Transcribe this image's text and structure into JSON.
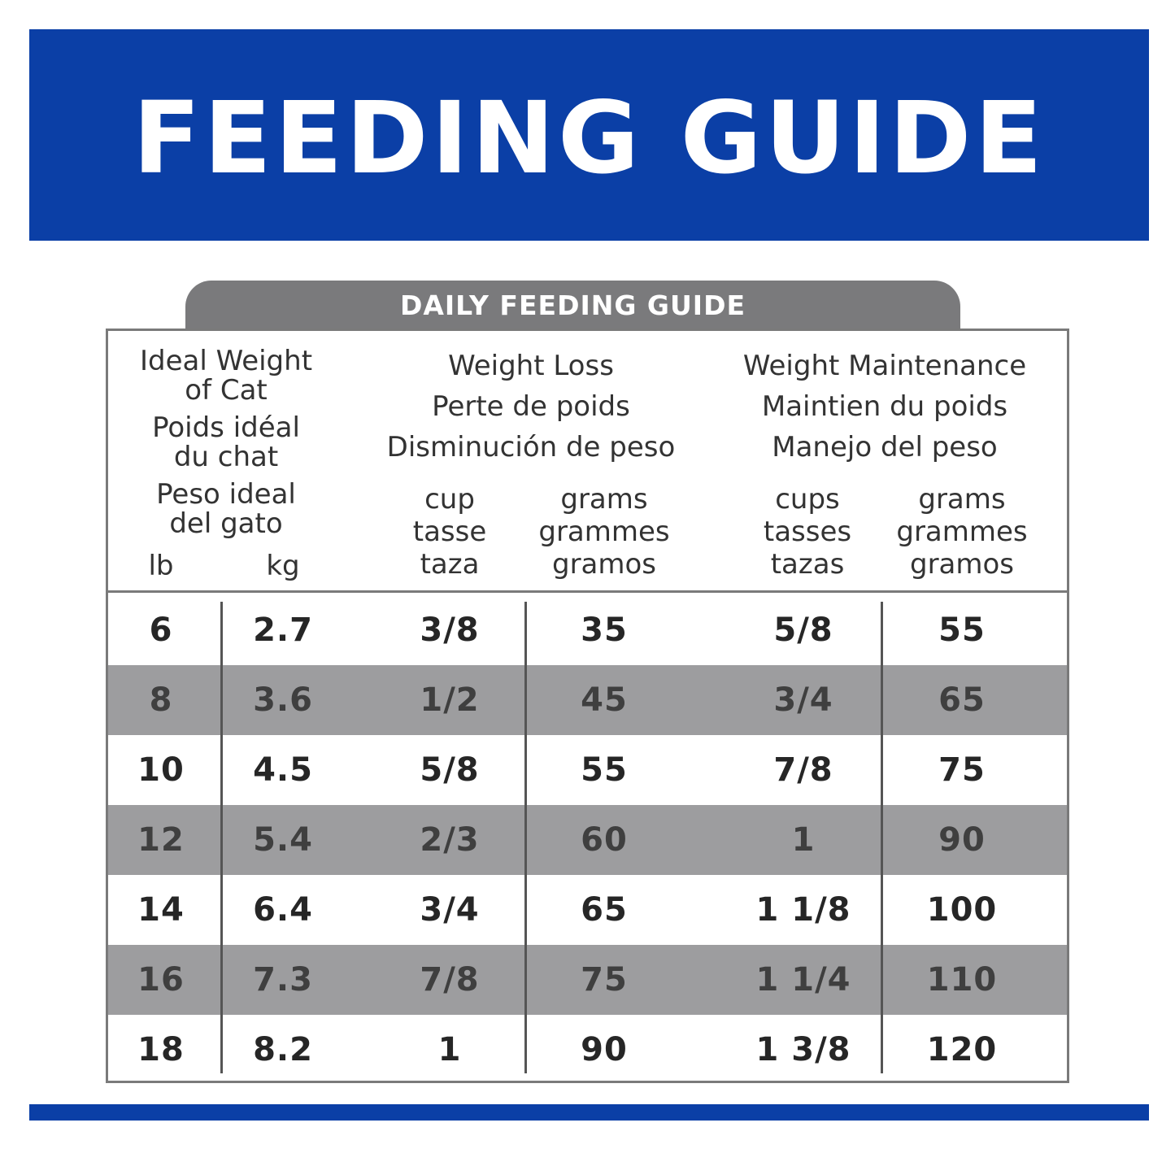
{
  "banner": {
    "title": "FEEDING GUIDE"
  },
  "tab": {
    "label": "DAILY FEEDING GUIDE"
  },
  "headers": {
    "weight": [
      "Ideal Weight",
      "of Cat",
      "Poids idéal",
      "du chat",
      "Peso ideal",
      "del gato"
    ],
    "lb": "lb",
    "kg": "kg",
    "loss": [
      "Weight Loss",
      "Perte de poids",
      "Disminución de peso"
    ],
    "maintenance": [
      "Weight Maintenance",
      "Maintien du poids",
      "Manejo del peso"
    ],
    "loss_cup": [
      "cup",
      "tasse",
      "taza"
    ],
    "loss_grams": [
      "grams",
      "grammes",
      "gramos"
    ],
    "maint_cups": [
      "cups",
      "tasses",
      "tazas"
    ],
    "maint_grams": [
      "grams",
      "grammes",
      "gramos"
    ]
  },
  "rows": [
    {
      "lb": "6",
      "kg": "2.7",
      "loss_cup": "3/8",
      "loss_g": "35",
      "maint_cup": "5/8",
      "maint_g": "55"
    },
    {
      "lb": "8",
      "kg": "3.6",
      "loss_cup": "1/2",
      "loss_g": "45",
      "maint_cup": "3/4",
      "maint_g": "65"
    },
    {
      "lb": "10",
      "kg": "4.5",
      "loss_cup": "5/8",
      "loss_g": "55",
      "maint_cup": "7/8",
      "maint_g": "75"
    },
    {
      "lb": "12",
      "kg": "5.4",
      "loss_cup": "2/3",
      "loss_g": "60",
      "maint_cup": "1",
      "maint_g": "90"
    },
    {
      "lb": "14",
      "kg": "6.4",
      "loss_cup": "3/4",
      "loss_g": "65",
      "maint_cup": "1 1/8",
      "maint_g": "100"
    },
    {
      "lb": "16",
      "kg": "7.3",
      "loss_cup": "7/8",
      "loss_g": "75",
      "maint_cup": "1 1/4",
      "maint_g": "110"
    },
    {
      "lb": "18",
      "kg": "8.2",
      "loss_cup": "1",
      "loss_g": "90",
      "maint_cup": "1 3/8",
      "maint_g": "120"
    }
  ],
  "colors": {
    "banner_blue": "#0b3fa6",
    "tab_gray": "#7a7a7c",
    "row_shade": "#9d9d9f"
  }
}
